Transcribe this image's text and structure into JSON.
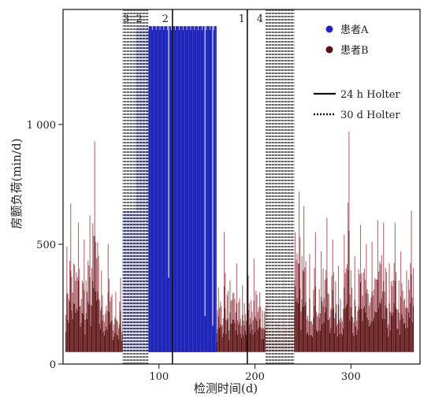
{
  "chart_data": {
    "type": "bar",
    "xlabel": "检测时间(d)",
    "ylabel": "房颤负荷(min/d)",
    "xlim": [
      0,
      372
    ],
    "ylim": [
      0,
      1480
    ],
    "xticks": [
      {
        "value": 100,
        "label": "100"
      },
      {
        "value": 200,
        "label": "200"
      },
      {
        "value": 300,
        "label": "300"
      }
    ],
    "yticks": [
      {
        "value": 0,
        "label": "0"
      },
      {
        "value": 500,
        "label": "500"
      },
      {
        "value": 1000,
        "label": "1 000"
      }
    ],
    "baseline": 50,
    "colors": {
      "patient_a": "#1f25b8",
      "patient_b_dark": "#5a0f10",
      "patient_b_light": "#b06a72",
      "frame": "#111111",
      "hatch": "#3a3a3a"
    },
    "series": [
      {
        "name": "患者A",
        "color": "#1f25b8",
        "segments": [
          {
            "x_start": 62,
            "x_end": 76,
            "value": 640
          },
          {
            "x_start": 76,
            "x_end": 160,
            "value": 1410
          }
        ],
        "dips": [
          {
            "x": 110,
            "value": 360
          },
          {
            "x": 148,
            "value": 200
          },
          {
            "x": 156,
            "value": 160
          }
        ]
      },
      {
        "name": "患者B",
        "color": "#5a0f10",
        "x_start": 3,
        "x_end": 365,
        "peaks": [
          {
            "x": 8,
            "value": 670
          },
          {
            "x": 16,
            "value": 590
          },
          {
            "x": 22,
            "value": 520
          },
          {
            "x": 28,
            "value": 620
          },
          {
            "x": 33,
            "value": 930
          },
          {
            "x": 40,
            "value": 390
          },
          {
            "x": 47,
            "value": 500
          },
          {
            "x": 55,
            "value": 300
          },
          {
            "x": 60,
            "value": 360
          },
          {
            "x": 65,
            "value": 330
          },
          {
            "x": 72,
            "value": 420
          },
          {
            "x": 79,
            "value": 260
          },
          {
            "x": 86,
            "value": 400
          },
          {
            "x": 92,
            "value": 450
          },
          {
            "x": 96,
            "value": 540
          },
          {
            "x": 101,
            "value": 460
          },
          {
            "x": 106,
            "value": 500
          },
          {
            "x": 112,
            "value": 610
          },
          {
            "x": 118,
            "value": 620
          },
          {
            "x": 124,
            "value": 700
          },
          {
            "x": 130,
            "value": 560
          },
          {
            "x": 136,
            "value": 470
          },
          {
            "x": 143,
            "value": 380
          },
          {
            "x": 150,
            "value": 410
          },
          {
            "x": 156,
            "value": 350
          },
          {
            "x": 162,
            "value": 320
          },
          {
            "x": 168,
            "value": 550
          },
          {
            "x": 174,
            "value": 350
          },
          {
            "x": 181,
            "value": 420
          },
          {
            "x": 187,
            "value": 330
          },
          {
            "x": 193,
            "value": 370
          },
          {
            "x": 199,
            "value": 440
          },
          {
            "x": 205,
            "value": 300
          },
          {
            "x": 212,
            "value": 420
          },
          {
            "x": 218,
            "value": 330
          },
          {
            "x": 224,
            "value": 270
          },
          {
            "x": 230,
            "value": 380
          },
          {
            "x": 236,
            "value": 300
          },
          {
            "x": 242,
            "value": 550
          },
          {
            "x": 246,
            "value": 720
          },
          {
            "x": 251,
            "value": 660
          },
          {
            "x": 257,
            "value": 460
          },
          {
            "x": 263,
            "value": 550
          },
          {
            "x": 269,
            "value": 470
          },
          {
            "x": 275,
            "value": 610
          },
          {
            "x": 281,
            "value": 520
          },
          {
            "x": 287,
            "value": 410
          },
          {
            "x": 293,
            "value": 540
          },
          {
            "x": 298,
            "value": 970
          },
          {
            "x": 304,
            "value": 450
          },
          {
            "x": 310,
            "value": 580
          },
          {
            "x": 316,
            "value": 500
          },
          {
            "x": 322,
            "value": 510
          },
          {
            "x": 328,
            "value": 600
          },
          {
            "x": 334,
            "value": 590
          },
          {
            "x": 340,
            "value": 420
          },
          {
            "x": 346,
            "value": 590
          },
          {
            "x": 352,
            "value": 470
          },
          {
            "x": 358,
            "value": 390
          },
          {
            "x": 363,
            "value": 640
          }
        ]
      }
    ],
    "regions": [
      {
        "label": "3",
        "x_start": 62,
        "x_end": 76,
        "style": "dotted-hatch"
      },
      {
        "label": "2",
        "x_start": 76,
        "x_end": 89,
        "style": "dotted-hatch"
      },
      {
        "label": "4",
        "x_start": 211,
        "x_end": 241,
        "style": "dotted-hatch"
      }
    ],
    "vlines": [
      {
        "label": "2",
        "x": 114,
        "style": "solid"
      },
      {
        "label": "1",
        "x": 192,
        "style": "solid"
      }
    ],
    "legend": {
      "placement": "top-right",
      "entries": [
        {
          "label": "患者A",
          "marker": "dot",
          "color": "#1f25b8"
        },
        {
          "label": "患者B",
          "marker": "dot",
          "color": "#5a0f10"
        },
        {
          "label": "24 h Holter",
          "marker": "solid-line",
          "color": "#111111"
        },
        {
          "label": "30 d Holter",
          "marker": "dotted-line",
          "color": "#111111"
        }
      ]
    },
    "grid": false
  }
}
